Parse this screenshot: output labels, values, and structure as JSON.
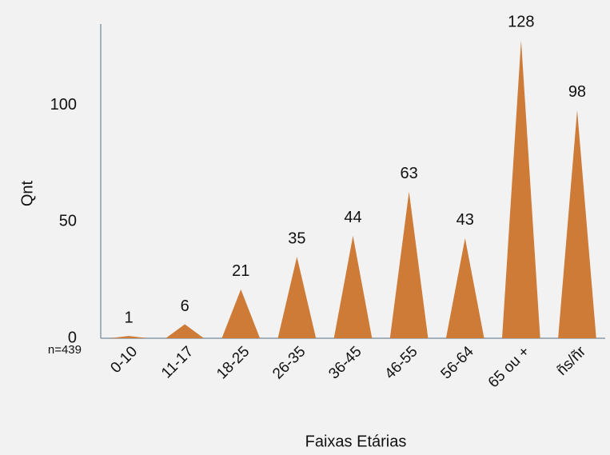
{
  "chart_data": {
    "type": "bar",
    "categories": [
      "0-10",
      "11-17",
      "18-25",
      "26-35",
      "36-45",
      "46-55",
      "56-64",
      "65 ou +",
      "ñs/ñr"
    ],
    "values": [
      1,
      6,
      21,
      35,
      44,
      63,
      43,
      128,
      98
    ],
    "color": "#cd7b37",
    "ylim": [
      0,
      135
    ],
    "yticks": [
      0,
      50,
      100
    ],
    "x_label": "Faixas Etárias",
    "y_label": "Qnt",
    "annotation": "n=439",
    "grid": false
  }
}
